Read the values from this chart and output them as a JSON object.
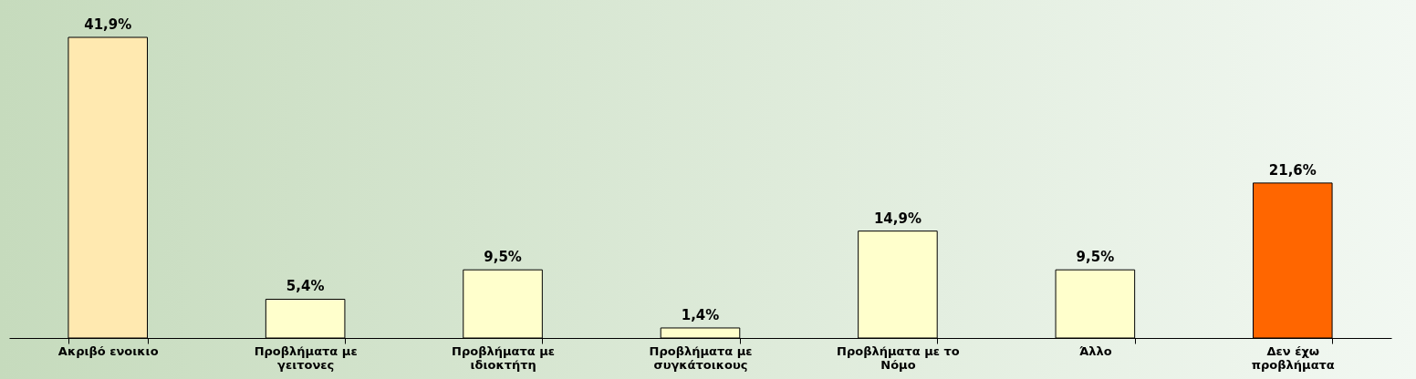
{
  "chart_data": {
    "type": "bar",
    "categories": [
      "Ακριβό ενοικιο",
      "Προβλήματα με γειτονες",
      "Προβλήματα με ιδιοκτήτη",
      "Προβλήματα με συγκάτοικους",
      "Προβλήματα με το Νόμο",
      "Άλλο",
      "Δεν έχω προβλήματα"
    ],
    "values": [
      41.9,
      5.4,
      9.5,
      1.4,
      14.9,
      9.5,
      21.6
    ],
    "value_labels": [
      "41,9%",
      "5,4%",
      "9,5%",
      "1,4%",
      "14,9%",
      "9,5%",
      "21,6%"
    ],
    "colors": [
      "#ffe9b0",
      "#ffffcc",
      "#ffffcc",
      "#ffffcc",
      "#ffffcc",
      "#ffffcc",
      "#ff6600"
    ],
    "grid": false
  }
}
